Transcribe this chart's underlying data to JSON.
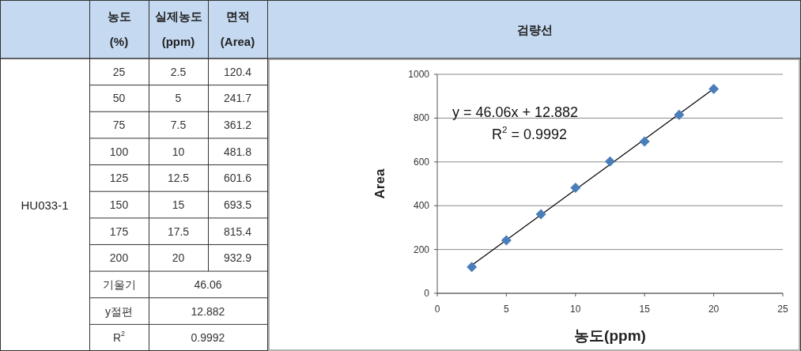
{
  "chart_data": {
    "type": "scatter",
    "title": "검량선",
    "xlabel": "농도(ppm)",
    "ylabel": "Area",
    "xlim": [
      0,
      25
    ],
    "ylim": [
      0,
      1000
    ],
    "xticks": [
      0,
      5,
      10,
      15,
      20,
      25
    ],
    "yticks": [
      0,
      200,
      400,
      600,
      800,
      1000
    ],
    "grid": "y",
    "marker": "diamond",
    "series": [
      {
        "color": "#4a7ebb",
        "x": [
          2.5,
          5,
          7.5,
          10,
          12.5,
          15,
          17.5,
          20
        ],
        "values": [
          120.4,
          241.7,
          361.2,
          481.8,
          601.6,
          693.5,
          815.4,
          932.9
        ]
      },
      {
        "type": "line",
        "marker": "none",
        "color": "#000000",
        "x": [
          2.5,
          20
        ],
        "values": [
          128,
          934
        ]
      }
    ],
    "annotations": [
      "y = 46.06x + 12.882",
      "R$^{2}$ = 0.9992",
      "농도",
      "(%)",
      "실제농도",
      "(ppm)",
      "면적",
      "(Area)",
      "HU033-1",
      "25",
      "50",
      "75",
      "100",
      "125",
      "150",
      "175",
      "200",
      "기울기",
      "46.06",
      "y절편",
      "12.882",
      "R$^{2}$",
      "0.9992",
      "2.5",
      "5",
      "7.5",
      "10",
      "12.5",
      "15",
      "17.5",
      "20",
      "120.4",
      "241.7",
      "361.2",
      "481.8",
      "601.6",
      "693.5",
      "815.4",
      "932.9"
    ]
  }
}
